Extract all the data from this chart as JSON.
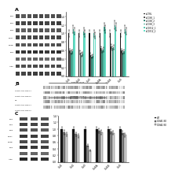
{
  "panel_a_bar_colors": [
    "#1a1a1a",
    "#555555",
    "#3d8b7a",
    "#4aab96",
    "#57c9b0",
    "#65e0c8"
  ],
  "panel_a_legend": [
    "siCTRL",
    "siCCNK_1",
    "siCCNK_2",
    "siCCNK_3",
    "siCDK12_1",
    "siCDK12_2"
  ],
  "panel_a_categories": [
    "Cul1",
    "Cul2",
    "Cul3",
    "Cul4A",
    "Cul4B",
    "Cul5"
  ],
  "panel_a_data": [
    [
      1.0,
      1.0,
      1.0,
      1.0,
      1.0,
      1.0
    ],
    [
      0.6,
      0.55,
      0.5,
      0.65,
      0.7,
      0.6
    ],
    [
      0.55,
      0.5,
      0.45,
      0.6,
      0.65,
      0.55
    ],
    [
      0.58,
      0.52,
      0.48,
      0.62,
      0.68,
      0.58
    ],
    [
      1.1,
      1.05,
      1.0,
      1.15,
      1.2,
      1.1
    ],
    [
      1.05,
      1.0,
      0.95,
      1.1,
      1.15,
      1.05
    ]
  ],
  "panel_c_bar_colors": [
    "#1a1a1a",
    "#888888",
    "#d0d0d0"
  ],
  "panel_c_legend": [
    "WT",
    "CCNA1-KO",
    "CCNA2-KO"
  ],
  "panel_c_categories": [
    "Cul1",
    "Cul2",
    "Cul3",
    "Cul4A",
    "Cul4B",
    "Cul5"
  ],
  "panel_c_data": [
    [
      1.0,
      1.0,
      1.0,
      1.0,
      1.0,
      1.0
    ],
    [
      0.9,
      0.85,
      0.5,
      0.95,
      0.92,
      0.88
    ],
    [
      0.85,
      0.8,
      0.35,
      0.9,
      0.88,
      0.82
    ]
  ],
  "bg_color": "#ffffff",
  "wb_bg": "#f0f0f0",
  "text_color": "#000000",
  "panel_a_wb_rows": 9,
  "panel_a_wb_cols": 8,
  "panel_c_wb_rows": 8,
  "panel_c_wb_cols": 3
}
